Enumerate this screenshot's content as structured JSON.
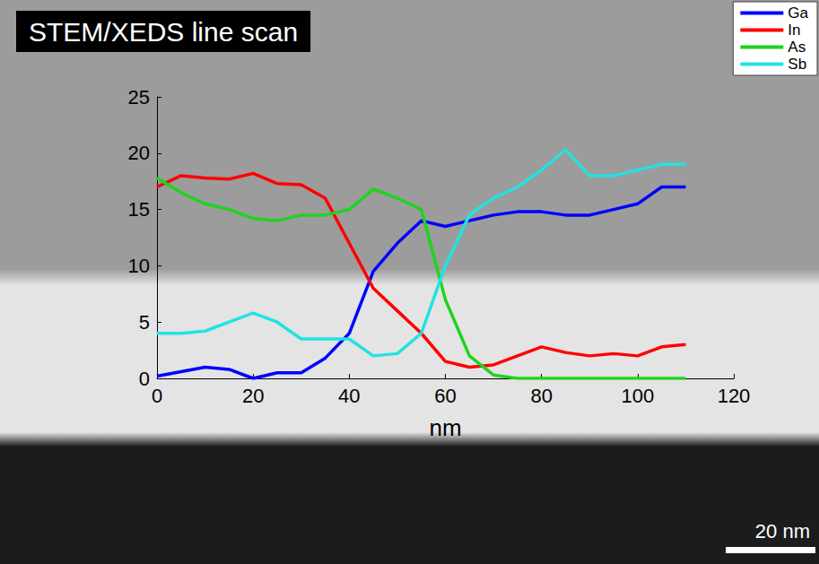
{
  "chart_data": {
    "type": "line",
    "title": "STEM/XEDS line scan",
    "x_label": "nm",
    "x": [
      0,
      5,
      10,
      15,
      20,
      25,
      30,
      35,
      40,
      45,
      50,
      55,
      60,
      65,
      70,
      75,
      80,
      85,
      90,
      95,
      100,
      105,
      110
    ],
    "series": [
      {
        "name": "Ga",
        "color": "#0000ff",
        "values": [
          0.2,
          0.6,
          1,
          0.8,
          0,
          0.5,
          0.5,
          1.8,
          4,
          9.5,
          12,
          14,
          13.5,
          14,
          14.5,
          14.8,
          14.8,
          14.5,
          14.5,
          15,
          15.5,
          17,
          17
        ]
      },
      {
        "name": "In",
        "color": "#ff0000",
        "values": [
          17,
          18,
          17.8,
          17.7,
          18.2,
          17.3,
          17.2,
          16,
          12,
          8,
          6,
          4,
          1.5,
          1,
          1.2,
          2,
          2.8,
          2.3,
          2,
          2.2,
          2,
          2.8,
          3
        ]
      },
      {
        "name": "As",
        "color": "#1ed41e",
        "values": [
          17.8,
          16.5,
          15.5,
          15,
          14.2,
          14,
          14.5,
          14.5,
          15,
          16.8,
          16,
          15,
          7,
          2,
          0.3,
          0,
          0,
          0,
          0,
          0,
          0,
          0,
          0
        ]
      },
      {
        "name": "Sb",
        "color": "#22e2e2",
        "values": [
          4,
          4,
          4.2,
          5,
          5.8,
          5,
          3.5,
          3.5,
          3.5,
          2,
          2.2,
          4,
          10,
          14.5,
          16,
          17,
          18.5,
          20.3,
          18,
          18,
          18.5,
          19,
          19
        ]
      }
    ],
    "xlim": [
      0,
      120
    ],
    "xticks": [
      0,
      20,
      40,
      60,
      80,
      100,
      120
    ],
    "ylim": [
      0,
      25
    ],
    "yticks": [
      0,
      5,
      10,
      15,
      20,
      25
    ],
    "grid": false,
    "legend": "upper right",
    "annotations": [
      "20 nm"
    ]
  }
}
